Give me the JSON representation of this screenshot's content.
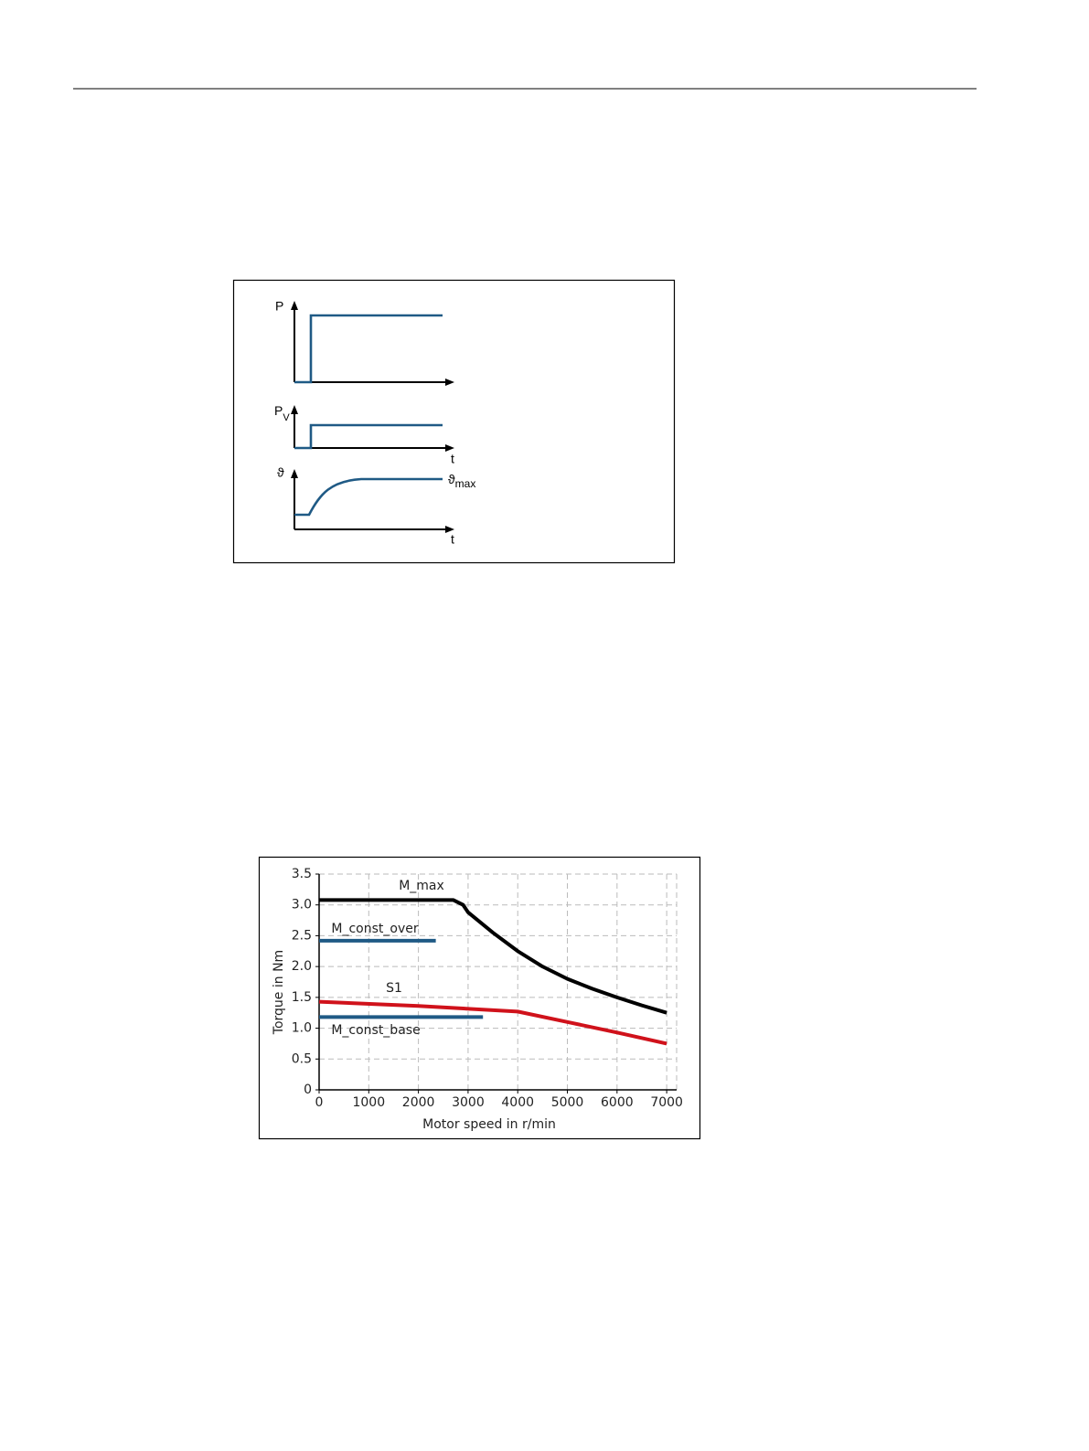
{
  "diagram": {
    "p_label": "P",
    "pv_label": {
      "text": "P",
      "subscript": "V"
    },
    "theta_label": "ϑ",
    "theta_max_label": {
      "text": "ϑ",
      "subscript": "max"
    },
    "t_label_1": "t",
    "t_label_2": "t"
  },
  "chart_data": {
    "type": "line",
    "xlabel": "Motor speed in r/min",
    "ylabel": "Torque in Nm",
    "xlim": [
      0,
      7200
    ],
    "ylim": [
      0,
      3.5
    ],
    "xticks": [
      0,
      1000,
      2000,
      3000,
      4000,
      5000,
      6000,
      7000
    ],
    "yticks": [
      0,
      0.5,
      {
        "value": 1,
        "label": "1.0"
      },
      1.5,
      {
        "value": 2,
        "label": "2.0"
      },
      2.5,
      {
        "value": 3,
        "label": "3.0"
      },
      3.5
    ],
    "grid": true,
    "series": [
      {
        "name": "M_max",
        "color": "#000000",
        "x": [
          0,
          2700,
          2900,
          3000,
          3500,
          4000,
          4500,
          5000,
          5500,
          6000,
          6500,
          7000
        ],
        "values": [
          3.08,
          3.08,
          3.0,
          2.88,
          2.55,
          2.25,
          2.0,
          1.8,
          1.64,
          1.5,
          1.37,
          1.25
        ]
      },
      {
        "name": "M_const_over",
        "color": "#1f5a85",
        "x": [
          0,
          2350
        ],
        "values": [
          2.42,
          2.42
        ]
      },
      {
        "name": "S1",
        "color": "#d0121b",
        "x": [
          0,
          2000,
          4000,
          5000,
          6000,
          7000
        ],
        "values": [
          1.43,
          1.36,
          1.27,
          1.1,
          0.93,
          0.75
        ]
      },
      {
        "name": "M_const_base",
        "color": "#1f5a85",
        "x": [
          0,
          3300
        ],
        "values": [
          1.18,
          1.18
        ]
      }
    ]
  }
}
